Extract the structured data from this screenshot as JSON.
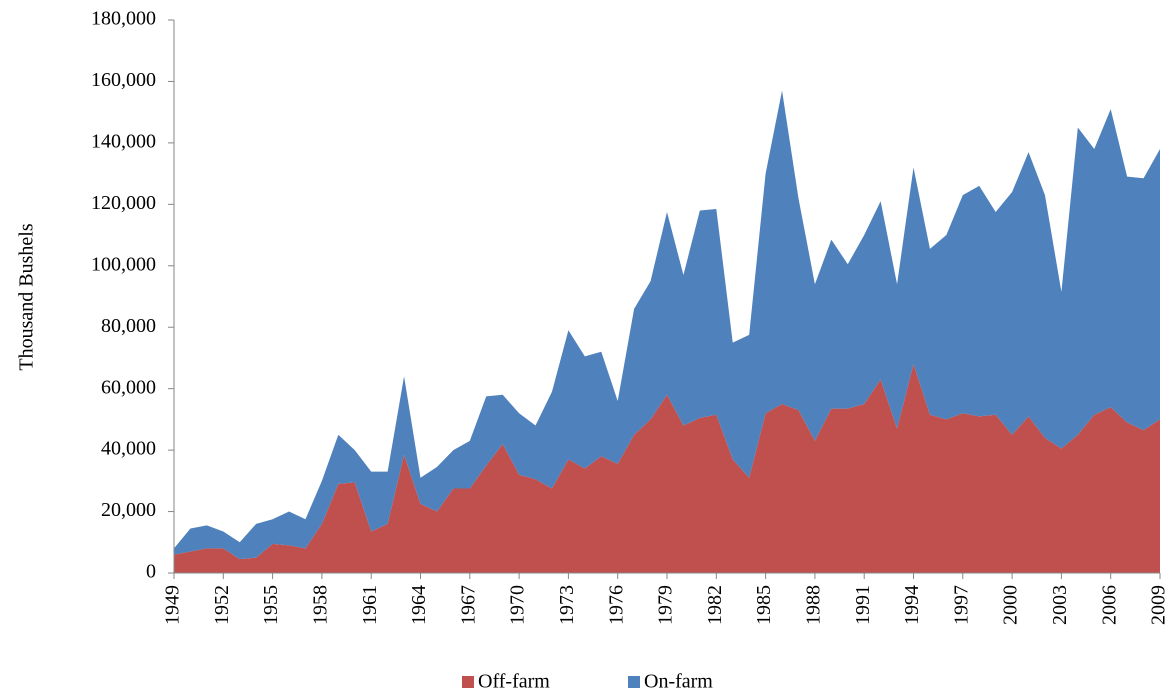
{
  "chart_data": {
    "type": "area",
    "stacked": true,
    "y_label": "Thousand Bushels",
    "x": [
      1949,
      1950,
      1951,
      1952,
      1953,
      1954,
      1955,
      1956,
      1957,
      1958,
      1959,
      1960,
      1961,
      1962,
      1963,
      1964,
      1965,
      1966,
      1967,
      1968,
      1969,
      1970,
      1971,
      1972,
      1973,
      1974,
      1975,
      1976,
      1977,
      1978,
      1979,
      1980,
      1981,
      1982,
      1983,
      1984,
      1985,
      1986,
      1987,
      1988,
      1989,
      1990,
      1991,
      1992,
      1993,
      1994,
      1995,
      1996,
      1997,
      1998,
      1999,
      2000,
      2001,
      2002,
      2003,
      2004,
      2005,
      2006,
      2007,
      2008,
      2009
    ],
    "series": [
      {
        "name": "Off-farm",
        "color": "#c0504d",
        "values": [
          6000,
          7000,
          8000,
          8000,
          4500,
          5000,
          9500,
          9000,
          8000,
          16000,
          29000,
          29500,
          13500,
          16000,
          38500,
          22500,
          20000,
          27500,
          27500,
          35000,
          42000,
          32000,
          30500,
          27500,
          37000,
          34000,
          38000,
          35500,
          45000,
          50000,
          58000,
          48000,
          50500,
          51500,
          37000,
          31000,
          52000,
          55000,
          53000,
          43000,
          53500,
          53500,
          55000,
          63000,
          47000,
          68000,
          51500,
          50000,
          52000,
          51000,
          51500,
          45000,
          51000,
          44000,
          40500,
          45000,
          51500,
          54000,
          49000,
          46500,
          50000
        ]
      },
      {
        "name": "On-farm",
        "color": "#4f81bd",
        "values": [
          2000,
          7500,
          7500,
          5500,
          5500,
          11000,
          8000,
          11000,
          9500,
          14000,
          16000,
          10500,
          19500,
          17000,
          25500,
          8500,
          14500,
          12500,
          15500,
          22500,
          16000,
          20000,
          17500,
          31500,
          42000,
          36500,
          34000,
          20500,
          41000,
          45000,
          59500,
          49000,
          67500,
          67000,
          38000,
          46500,
          78000,
          102000,
          69000,
          51000,
          55000,
          47000,
          55000,
          58000,
          47000,
          64000,
          54000,
          60000,
          71000,
          75000,
          66000,
          79000,
          86000,
          79000,
          51000,
          100000,
          86500,
          97000,
          80000,
          82000,
          88000
        ]
      }
    ],
    "xlim": [
      1949,
      2009
    ],
    "xticks": [
      1949,
      1952,
      1955,
      1958,
      1961,
      1964,
      1967,
      1970,
      1973,
      1976,
      1979,
      1982,
      1985,
      1988,
      1991,
      1994,
      1997,
      2000,
      2003,
      2006,
      2009
    ],
    "ylim": [
      0,
      180000
    ],
    "yticks": [
      0,
      {
        "value": 20000,
        "label": "20,000"
      },
      {
        "value": 40000,
        "label": "40,000"
      },
      {
        "value": 60000,
        "label": "60,000"
      },
      {
        "value": 80000,
        "label": "80,000"
      },
      {
        "value": 100000,
        "label": "100,000"
      },
      {
        "value": 120000,
        "label": "120,000"
      },
      {
        "value": 140000,
        "label": "140,000"
      },
      {
        "value": 160000,
        "label": "160,000"
      },
      {
        "value": 180000,
        "label": "180,000"
      }
    ],
    "legend": "bottom"
  }
}
